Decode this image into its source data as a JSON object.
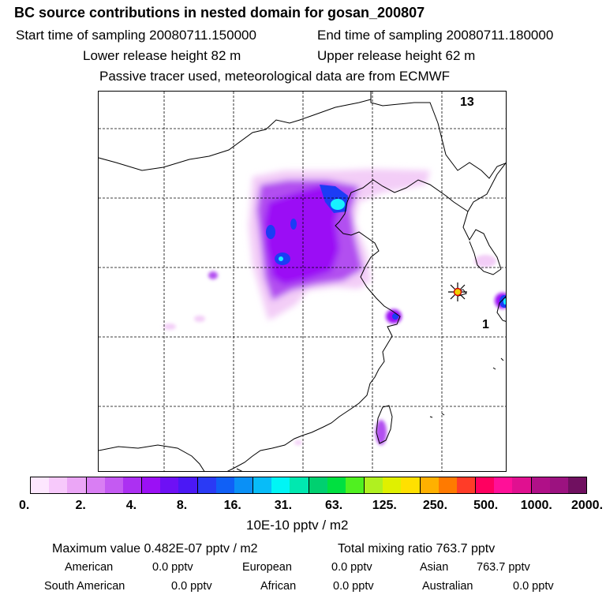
{
  "header": {
    "title": "BC  source contributions in nested domain for gosan_200807",
    "start_label": "Start time of sampling 20080711.150000",
    "end_label": "End time of sampling 20080711.180000",
    "lower_label": "Lower release height   82 m",
    "upper_label": "Upper release height   62 m",
    "info_label": "Passive tracer used, meteorological data are from ECMWF"
  },
  "map": {
    "marker_labels": [
      "13",
      "1"
    ],
    "receptor_marker": "star-icon",
    "colors": {
      "light_pink": "#f3cdf7",
      "violet": "#b24ff0",
      "purple": "#9b10f5",
      "blue": "#1c3cf5",
      "cyan": "#18f0ff"
    }
  },
  "colorbar": {
    "colors": [
      "#fde7fe",
      "#f7c9fb",
      "#eba6f6",
      "#d97ef3",
      "#c45af2",
      "#ac30f2",
      "#9b10f5",
      "#6e10f5",
      "#4b18f5",
      "#2a3af5",
      "#1060f6",
      "#0a90f6",
      "#08bcf8",
      "#00f5f5",
      "#00e8b0",
      "#00d070",
      "#00e040",
      "#50f020",
      "#b0f020",
      "#e0f000",
      "#ffe000",
      "#ffb000",
      "#ff7a00",
      "#ff3c28",
      "#ff0060",
      "#ff1098",
      "#e01090",
      "#b01088",
      "#9c1280",
      "#701060"
    ],
    "tick_labels": [
      "0.",
      "2.",
      "4.",
      "8.",
      "16.",
      "31.",
      "63.",
      "125.",
      "250.",
      "500.",
      "1000.",
      "2000."
    ],
    "unit": "10E-10 pptv / m2"
  },
  "summary": {
    "max_value_label": "Maximum value  0.482E-07 pptv / m2",
    "total_label": "Total mixing ratio      763.7 pptv",
    "rows": [
      [
        {
          "name": "American",
          "value": "0.0 pptv"
        },
        {
          "name": "European",
          "value": "0.0 pptv"
        },
        {
          "name": "Asian",
          "value": "763.7 pptv"
        }
      ],
      [
        {
          "name": "South American",
          "value": "0.0 pptv"
        },
        {
          "name": "African",
          "value": "0.0 pptv"
        },
        {
          "name": "Australian",
          "value": "0.0 pptv"
        }
      ]
    ]
  }
}
